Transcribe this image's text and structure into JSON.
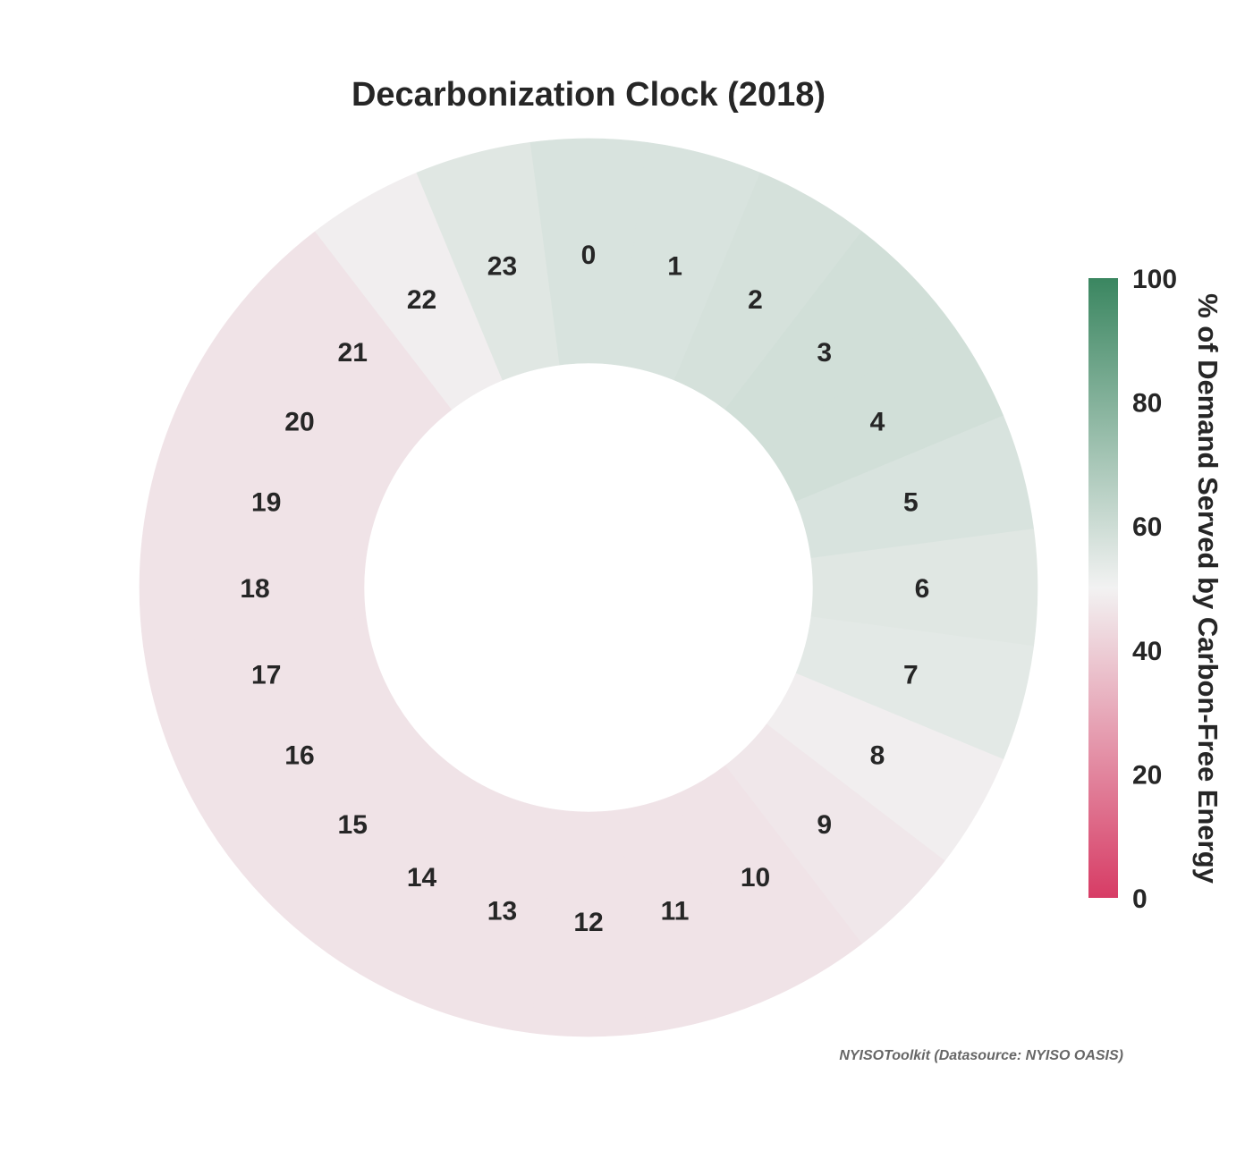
{
  "chart_data": {
    "type": "radial-heatmap",
    "title": "Decarbonization Clock (2018)",
    "hours": [
      "0",
      "1",
      "2",
      "3",
      "4",
      "5",
      "6",
      "7",
      "8",
      "9",
      "10",
      "11",
      "12",
      "13",
      "14",
      "15",
      "16",
      "17",
      "18",
      "19",
      "20",
      "21",
      "22",
      "23"
    ],
    "values": [
      57,
      57,
      58,
      59,
      59,
      57,
      55,
      54,
      49,
      47,
      46,
      46,
      46,
      46,
      46,
      46,
      46,
      46,
      46,
      46,
      46,
      46,
      49,
      55
    ],
    "colorbar": {
      "label": "% of Demand Served by Carbon-Free Energy",
      "range": [
        0,
        100
      ],
      "ticks": [
        "0",
        "20",
        "40",
        "60",
        "80",
        "100"
      ],
      "colors": {
        "low": "#d73c65",
        "mid": "#f2f2f2",
        "high": "#3a8660"
      }
    },
    "credit": "NYISOToolkit (Datasource: NYISO OASIS)"
  }
}
